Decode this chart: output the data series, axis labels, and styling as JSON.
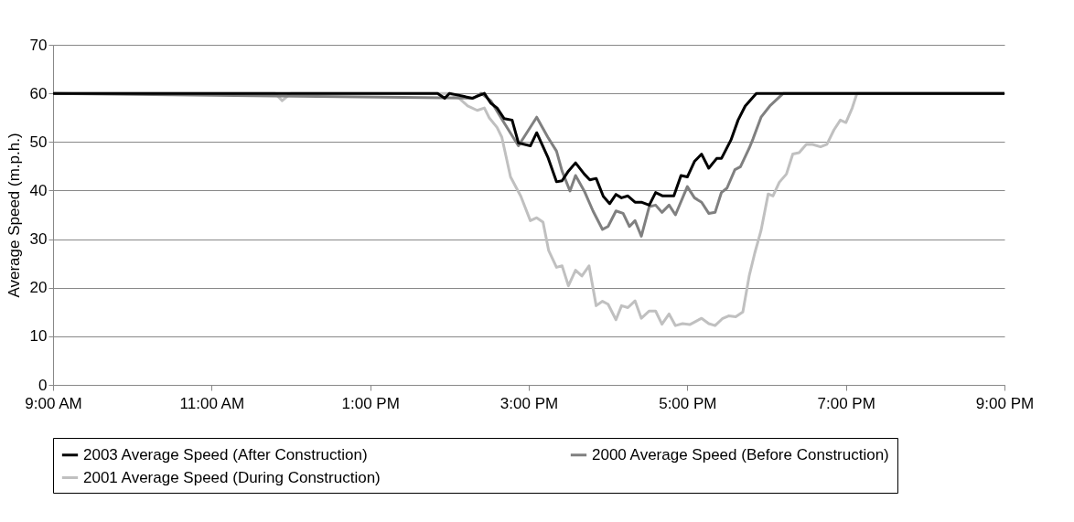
{
  "chart_data": {
    "type": "line",
    "ylabel": "Average Speed (m.p.h.)",
    "xlim": [
      9,
      21
    ],
    "ylim": [
      0,
      70
    ],
    "yticks": [
      0,
      10,
      20,
      30,
      40,
      50,
      60,
      70
    ],
    "xticks": [
      {
        "value": 9,
        "label": "9:00 AM"
      },
      {
        "value": 11,
        "label": "11:00 AM"
      },
      {
        "value": 13,
        "label": "1:00 PM"
      },
      {
        "value": 15,
        "label": "3:00 PM"
      },
      {
        "value": 17,
        "label": "5:00 PM"
      },
      {
        "value": 19,
        "label": "7:00 PM"
      },
      {
        "value": 21,
        "label": "9:00 PM"
      }
    ],
    "grid": "y",
    "legend": "bottom",
    "line_style": "solid",
    "marker": "none",
    "series": [
      {
        "name": "2003 Average Speed (After Construction)",
        "color": "#000000",
        "x": [
          9,
          13.85,
          13.94,
          14.0,
          14.29,
          14.44,
          14.52,
          14.6,
          14.69,
          14.79,
          14.87,
          15.02,
          15.1,
          15.24,
          15.35,
          15.42,
          15.5,
          15.59,
          15.7,
          15.77,
          15.85,
          15.94,
          16.02,
          16.1,
          16.17,
          16.25,
          16.34,
          16.42,
          16.52,
          16.6,
          16.69,
          16.83,
          16.92,
          17.0,
          17.09,
          17.18,
          17.27,
          17.37,
          17.43,
          17.55,
          17.64,
          17.73,
          17.87,
          21
        ],
        "values": [
          60,
          60,
          59,
          60,
          59,
          60,
          58,
          57,
          54.8,
          54.5,
          49.8,
          49.2,
          51.9,
          46.9,
          41.8,
          42,
          44,
          45.7,
          43.4,
          42.2,
          42.5,
          38.8,
          37.3,
          39.2,
          38.5,
          38.9,
          37.6,
          37.6,
          37,
          39.6,
          38.9,
          38.9,
          43.1,
          42.8,
          46,
          47.5,
          44.6,
          46.6,
          46.6,
          50.4,
          54.5,
          57.4,
          60,
          60
        ]
      },
      {
        "name": "2000 Average Speed (Before Construction)",
        "color": "#808080",
        "x": [
          9,
          14.3,
          14.4,
          14.52,
          14.69,
          14.87,
          15.1,
          15.24,
          15.35,
          15.42,
          15.52,
          15.59,
          15.7,
          15.81,
          15.93,
          16.0,
          16.1,
          16.19,
          16.27,
          16.34,
          16.42,
          16.52,
          16.6,
          16.68,
          16.77,
          16.85,
          17.0,
          17.09,
          17.18,
          17.27,
          17.35,
          17.43,
          17.5,
          17.6,
          17.67,
          17.78,
          17.83,
          17.93,
          18.04,
          18.21,
          21
        ],
        "values": [
          60,
          59,
          60,
          58.5,
          53.9,
          49.2,
          55.1,
          51,
          48.1,
          44,
          39.9,
          43.1,
          39.9,
          35.8,
          32,
          32.6,
          35.8,
          35.3,
          32.6,
          33.8,
          30.6,
          36.7,
          37,
          35.5,
          37,
          35,
          40.8,
          38.5,
          37.6,
          35.3,
          35.5,
          39.6,
          40.5,
          44.3,
          44.9,
          48.7,
          50.7,
          55.1,
          57.4,
          60,
          60
        ]
      },
      {
        "name": "2001 Average Speed (During Construction)",
        "color": "#c0c0c0",
        "x": [
          9,
          11.8,
          11.89,
          12.0,
          14.0,
          14.12,
          14.23,
          14.35,
          14.44,
          14.5,
          14.6,
          14.66,
          14.77,
          14.9,
          15.02,
          15.1,
          15.18,
          15.25,
          15.35,
          15.42,
          15.5,
          15.59,
          15.67,
          15.76,
          15.85,
          15.93,
          16.0,
          16.1,
          16.17,
          16.25,
          16.34,
          16.42,
          16.52,
          16.6,
          16.68,
          16.77,
          16.85,
          16.94,
          17.03,
          17.18,
          17.27,
          17.35,
          17.44,
          17.52,
          17.61,
          17.7,
          17.78,
          17.85,
          17.93,
          18.02,
          18.08,
          18.16,
          18.25,
          18.33,
          18.41,
          18.5,
          18.58,
          18.68,
          18.76,
          18.85,
          18.93,
          19.0,
          19.08,
          19.14,
          21
        ],
        "values": [
          60,
          60,
          58.5,
          60,
          60,
          59,
          57.4,
          56.5,
          57,
          55,
          53,
          51,
          42.8,
          38.8,
          33.8,
          34.4,
          33.5,
          27.7,
          24.2,
          24.5,
          20.4,
          23.6,
          22.4,
          24.5,
          16.3,
          17.2,
          16.6,
          13.4,
          16.3,
          15.9,
          17.3,
          13.7,
          15.2,
          15.2,
          12.5,
          14.6,
          12.2,
          12.6,
          12.4,
          13.7,
          12.6,
          12.2,
          13.6,
          14.2,
          14,
          15,
          22.4,
          27.1,
          31.8,
          39.3,
          38.9,
          41.7,
          43.4,
          47.5,
          47.8,
          49.5,
          49.5,
          49,
          49.5,
          52.5,
          54.5,
          54,
          57,
          60,
          60
        ]
      }
    ]
  }
}
